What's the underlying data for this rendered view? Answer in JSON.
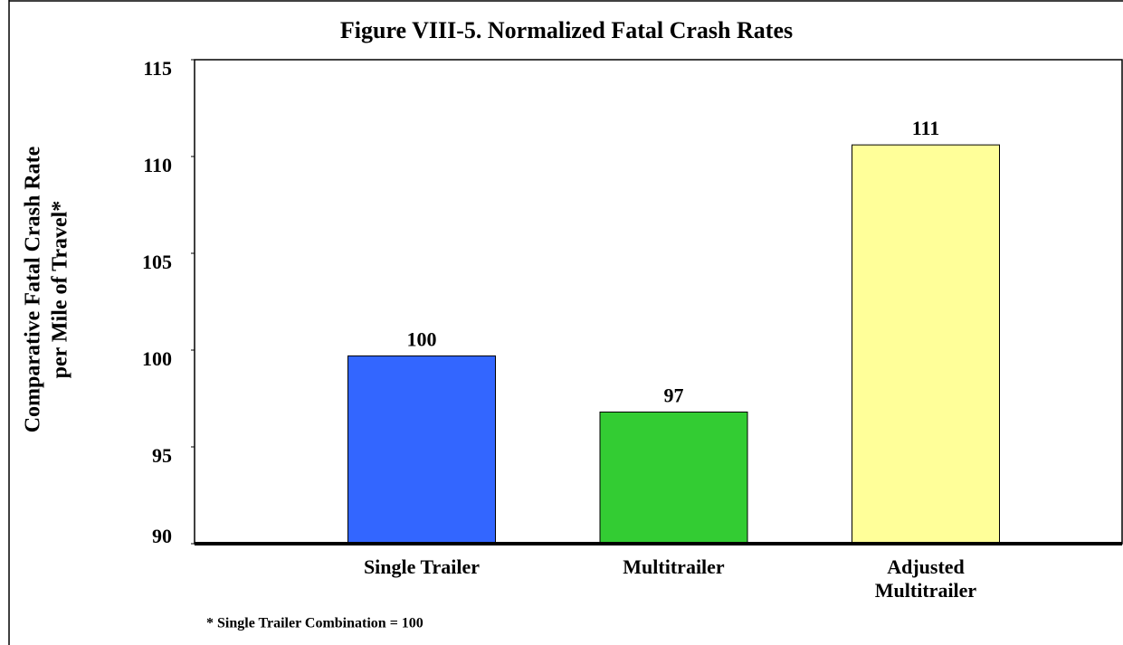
{
  "chart_data": {
    "type": "bar",
    "title": "Figure VIII-5.  Normalized Fatal Crash Rates",
    "y_label_lines": [
      "Comparative Fatal Crash Rate",
      "per Mile of Travel*"
    ],
    "categories": [
      "Single Trailer",
      "Multitrailer",
      "Adjusted Multitrailer"
    ],
    "values": [
      99.7,
      96.8,
      110.6
    ],
    "value_labels": [
      "100",
      "97",
      "111"
    ],
    "colors": [
      "#3366ff",
      "#33cc33",
      "#ffff99"
    ],
    "ylim": [
      90,
      115
    ],
    "yticks": [
      90,
      95,
      100,
      105,
      110,
      115
    ],
    "footnote": "* Single Trailer Combination = 100"
  }
}
